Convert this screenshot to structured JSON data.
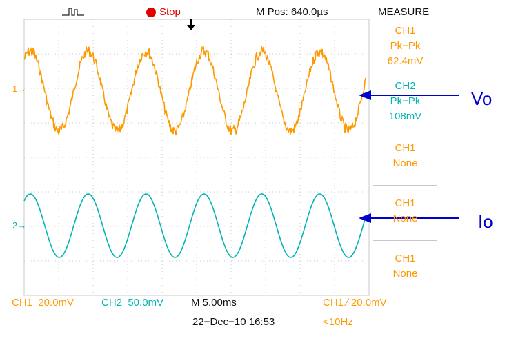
{
  "top_bar": {
    "trigger_glyph": "trigger-waveform-icon",
    "state": "Stop",
    "state_color": "#e00000",
    "position": "M Pos: 640.0µs",
    "menu_title": "MEASURE"
  },
  "channel_markers": {
    "ch1": "1→",
    "ch2": "2→"
  },
  "measure_panel": [
    {
      "source": "CH1",
      "type": "Pk−Pk",
      "value": "62.4mV",
      "color": "#ff9900"
    },
    {
      "source": "CH2",
      "type": "Pk−Pk",
      "value": "108mV",
      "color": "#00b4b4"
    },
    {
      "source": "CH1",
      "type": "None",
      "value": "",
      "color": "#ff9900"
    },
    {
      "source": "CH1",
      "type": "None",
      "value": "",
      "color": "#ff9900"
    },
    {
      "source": "CH1",
      "type": "None",
      "value": "",
      "color": "#ff9900"
    }
  ],
  "bottom_bar": {
    "ch1_scale": "CH1  20.0mV",
    "ch2_scale": "CH2  50.0mV",
    "timebase": "M 5.00ms",
    "trigger_info": "CH1 ∕ 20.0mV",
    "date_time": "22−Dec−10 16:53",
    "trigger_freq": "<10Hz"
  },
  "annotations": {
    "vo_label": "Vo",
    "io_label": "Io",
    "arrow_color": "#0000cc"
  },
  "waveforms": {
    "ch1": {
      "name": "CH1",
      "color": "#ff9900",
      "cycles": 5.9,
      "noisy": true
    },
    "ch2": {
      "name": "CH2",
      "color": "#00b4b4",
      "cycles": 5.9,
      "noisy": false
    }
  }
}
